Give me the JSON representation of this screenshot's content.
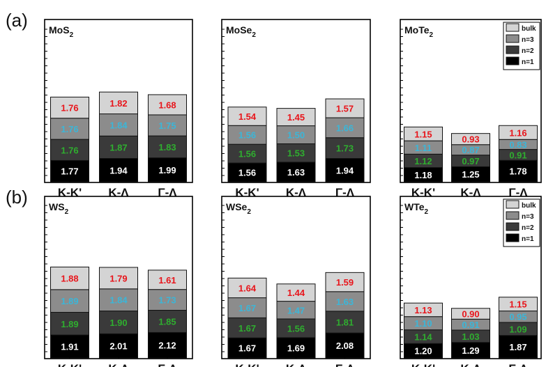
{
  "figure": {
    "panel_labels": [
      "(a)",
      "(b)"
    ],
    "tick_labels": [
      "K-K'",
      "K-Λ",
      "Γ-Λ"
    ],
    "legend_items": [
      {
        "label": "bulk",
        "color": "#d4d4d4"
      },
      {
        "label": "n=3",
        "color": "#8c8c8c"
      },
      {
        "label": "n=2",
        "color": "#3a3a3a"
      },
      {
        "label": "n=1",
        "color": "#000000"
      }
    ],
    "label_colors": {
      "n=1": "#ffffff",
      "n=2": "#2fae2f",
      "n=3": "#3bb6d8",
      "bulk": "#e8151b"
    }
  },
  "chart_data": [
    {
      "type": "bar",
      "stacked": true,
      "title_base": "MoS",
      "title_sub": "2",
      "categories": [
        "K-K'",
        "K-Λ",
        "Γ-Λ"
      ],
      "legend": false,
      "series": [
        {
          "name": "n=1",
          "values": [
            1.77,
            1.94,
            1.99
          ]
        },
        {
          "name": "n=2",
          "values": [
            1.76,
            1.87,
            1.83
          ]
        },
        {
          "name": "n=3",
          "values": [
            1.76,
            1.84,
            1.75
          ]
        },
        {
          "name": "bulk",
          "values": [
            1.76,
            1.82,
            1.68
          ]
        }
      ]
    },
    {
      "type": "bar",
      "stacked": true,
      "title_base": "MoSe",
      "title_sub": "2",
      "categories": [
        "K-K'",
        "K-Λ",
        "Γ-Λ"
      ],
      "legend": false,
      "series": [
        {
          "name": "n=1",
          "values": [
            1.56,
            1.63,
            1.94
          ]
        },
        {
          "name": "n=2",
          "values": [
            1.56,
            1.53,
            1.73
          ]
        },
        {
          "name": "n=3",
          "values": [
            1.56,
            1.5,
            1.66
          ]
        },
        {
          "name": "bulk",
          "values": [
            1.54,
            1.45,
            1.57
          ]
        }
      ]
    },
    {
      "type": "bar",
      "stacked": true,
      "title_base": "MoTe",
      "title_sub": "2",
      "categories": [
        "K-K'",
        "K-Λ",
        "Γ-Λ"
      ],
      "legend": true,
      "series": [
        {
          "name": "n=1",
          "values": [
            1.18,
            1.25,
            1.78
          ]
        },
        {
          "name": "n=2",
          "values": [
            1.12,
            0.97,
            0.91
          ]
        },
        {
          "name": "n=3",
          "values": [
            1.11,
            0.87,
            0.83
          ]
        },
        {
          "name": "bulk",
          "values": [
            1.15,
            0.93,
            1.16
          ]
        }
      ]
    },
    {
      "type": "bar",
      "stacked": true,
      "title_base": "WS",
      "title_sub": "2",
      "categories": [
        "K-K'",
        "K-Λ",
        "Γ-Λ"
      ],
      "legend": false,
      "series": [
        {
          "name": "n=1",
          "values": [
            1.91,
            2.01,
            2.12
          ]
        },
        {
          "name": "n=2",
          "values": [
            1.89,
            1.9,
            1.85
          ]
        },
        {
          "name": "n=3",
          "values": [
            1.89,
            1.84,
            1.73
          ]
        },
        {
          "name": "bulk",
          "values": [
            1.88,
            1.79,
            1.61
          ]
        }
      ]
    },
    {
      "type": "bar",
      "stacked": true,
      "title_base": "WSe",
      "title_sub": "2",
      "categories": [
        "K-K'",
        "K-Λ",
        "Γ-Λ"
      ],
      "legend": false,
      "series": [
        {
          "name": "n=1",
          "values": [
            1.67,
            1.69,
            2.08
          ]
        },
        {
          "name": "n=2",
          "values": [
            1.67,
            1.56,
            1.81
          ]
        },
        {
          "name": "n=3",
          "values": [
            1.67,
            1.47,
            1.63
          ]
        },
        {
          "name": "bulk",
          "values": [
            1.64,
            1.44,
            1.59
          ]
        }
      ]
    },
    {
      "type": "bar",
      "stacked": true,
      "title_base": "WTe",
      "title_sub": "2",
      "categories": [
        "K-K'",
        "K-Λ",
        "Γ-Λ"
      ],
      "legend": true,
      "series": [
        {
          "name": "n=1",
          "values": [
            1.2,
            1.29,
            1.87
          ]
        },
        {
          "name": "n=2",
          "values": [
            1.14,
            1.03,
            1.09
          ]
        },
        {
          "name": "n=3",
          "values": [
            1.1,
            0.91,
            0.95
          ]
        },
        {
          "name": "bulk",
          "values": [
            1.13,
            0.9,
            1.15
          ]
        }
      ]
    }
  ]
}
